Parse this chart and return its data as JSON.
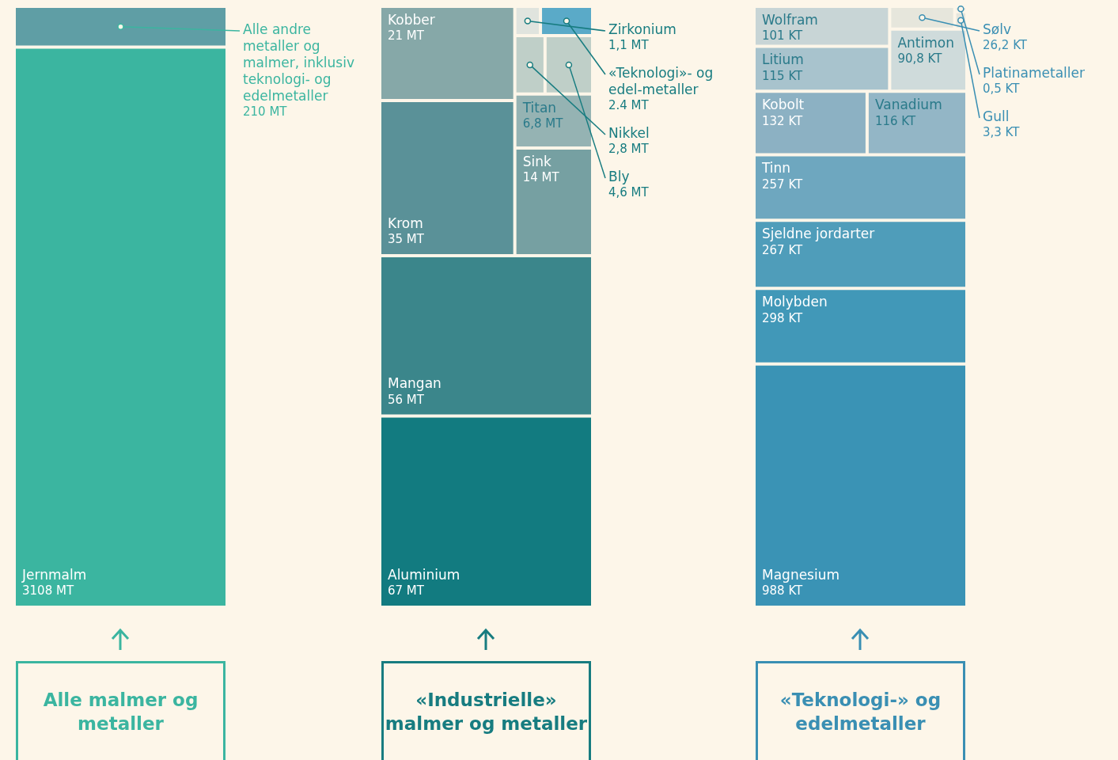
{
  "chart_data": [
    {
      "type": "other",
      "title": "Alle malmer og metaller",
      "categories": [
        "Jernmalm",
        "Alle andre metaller og malmer, inklusiv teknologi- og edelmetaller"
      ],
      "values": [
        3108,
        210
      ],
      "value_labels": [
        "3108 MT",
        "210 MT"
      ],
      "colors": [
        "#3bb5a0",
        "#5f9ea5"
      ]
    },
    {
      "type": "other",
      "title": "«Industrielle» malmer og metaller",
      "categories": [
        "Kobber",
        "Krom",
        "Mangan",
        "Aluminium",
        "Zirkonium",
        "Nikkel",
        "Bly",
        "Titan",
        "Sink",
        "«Teknologi»- og edel-metaller"
      ],
      "values": [
        21,
        35,
        56,
        67,
        1.1,
        2.8,
        4.6,
        6.8,
        14,
        2.4
      ],
      "value_labels": [
        "21 MT",
        "35 MT",
        "56 MT",
        "67 MT",
        "1,1 MT",
        "2,8 MT",
        "4,6 MT",
        "6,8 MT",
        "14 MT",
        "2.4 MT"
      ],
      "colors": [
        "#86a8a8",
        "#5a9198",
        "#3b868b",
        "#127b80",
        "#e0e4de",
        "#bfcfc8",
        "#bfcfc8",
        "#95b3b3",
        "#76a0a2",
        "#5aaac8"
      ]
    },
    {
      "type": "other",
      "title": "«Teknologi-» og edelmetaller",
      "categories": [
        "Magnesium",
        "Molybden",
        "Sjeldne jordarter",
        "Tinn",
        "Kobolt",
        "Vanadium",
        "Litium",
        "Wolfram",
        "Antimon",
        "Sølv",
        "Gull",
        "Platinametaller"
      ],
      "values": [
        988,
        298,
        267,
        257,
        132,
        116,
        115,
        101,
        90.8,
        26.2,
        3.3,
        0.5
      ],
      "value_labels": [
        "988 KT",
        "298 KT",
        "267 KT",
        "257 KT",
        "132 KT",
        "116 KT",
        "115 KT",
        "101 KT",
        "90,8 KT",
        "26,2 KT",
        "3,3 KT",
        "0,5 KT"
      ],
      "colors": [
        "#3a93b5",
        "#4198b8",
        "#4f9dba",
        "#6ea7bf",
        "#8cb1c3",
        "#93b6c6",
        "#a8c3cd",
        "#c8d5d6",
        "#cfdbdb",
        "#e6e6dc",
        "#e6e6dc",
        "#e6e6dc"
      ]
    }
  ]
}
